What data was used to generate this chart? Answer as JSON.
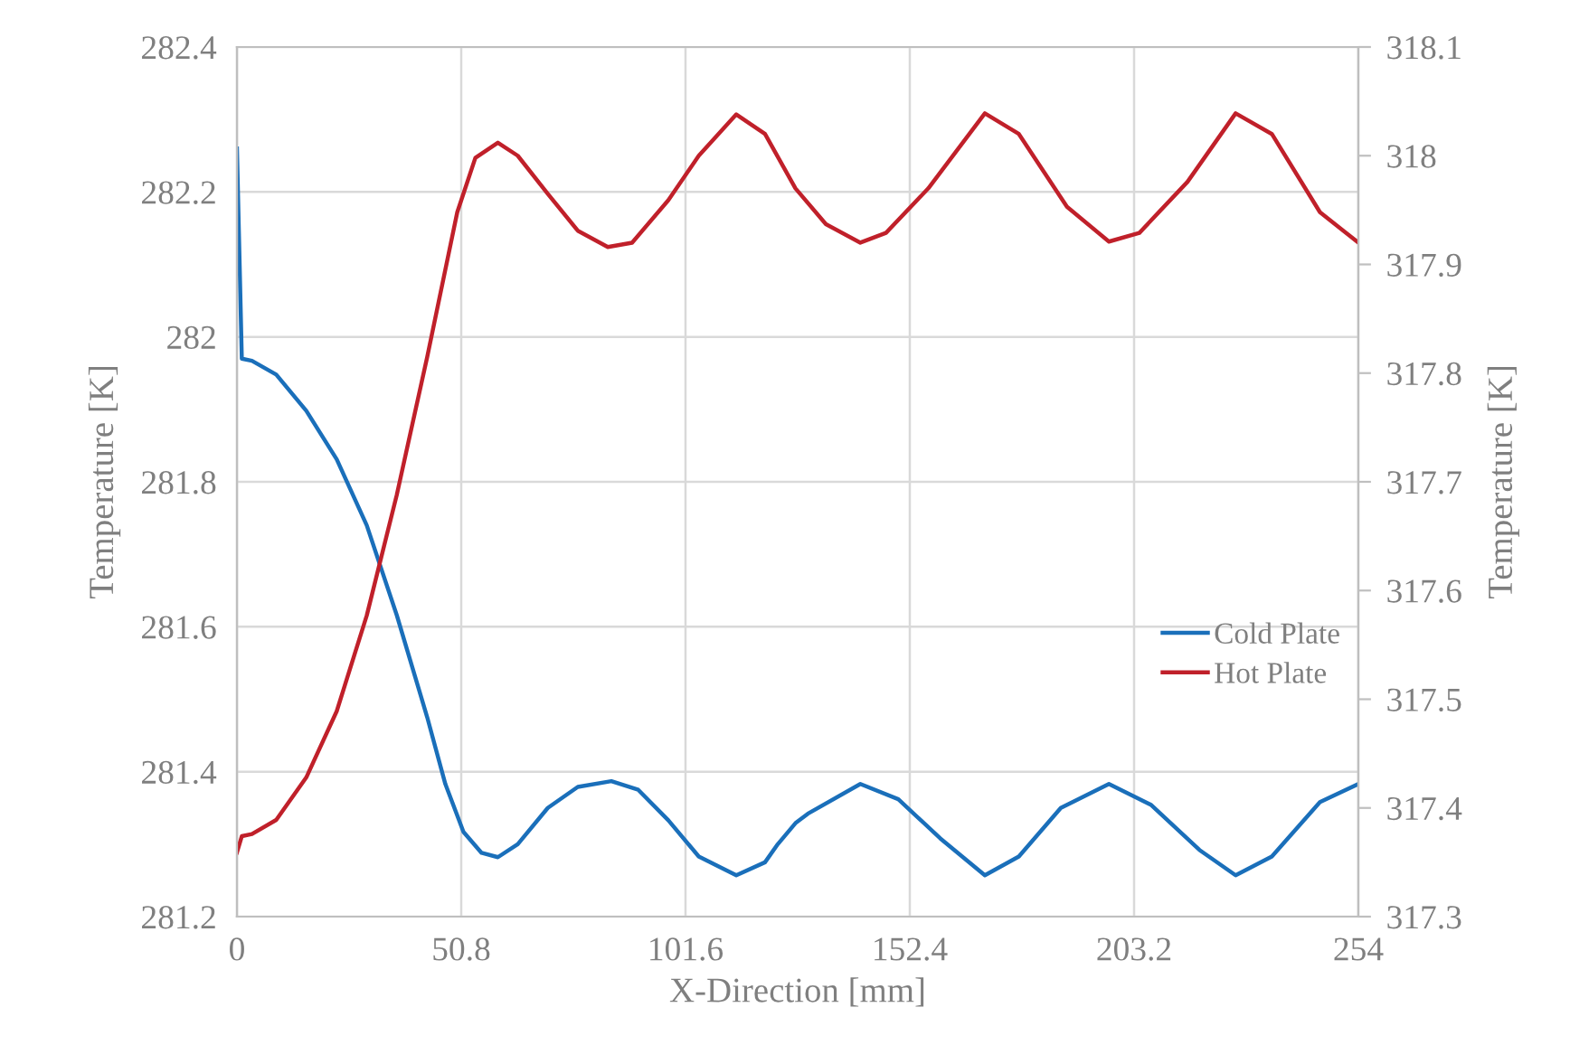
{
  "chart_data": {
    "type": "line",
    "xlabel": "X-Direction [mm]",
    "ylabel": "Temperature [K]",
    "y2label": "Temperature [K]",
    "xlim": [
      0,
      254
    ],
    "xticks": [
      0,
      50.8,
      101.6,
      152.4,
      203.2,
      254
    ],
    "ylim": [
      281.2,
      282.4
    ],
    "yticks": [
      281.2,
      281.4,
      281.6,
      281.8,
      282,
      282.2,
      282.4
    ],
    "y2lim": [
      317.3,
      318.1
    ],
    "y2ticks": [
      317.3,
      317.4,
      317.5,
      317.6,
      317.7,
      317.8,
      317.9,
      318,
      318.1
    ],
    "grid": true,
    "legend": "right",
    "marker": "none",
    "line_style": "solid",
    "series": [
      {
        "name": "Cold Plate",
        "color": "#1a6fba",
        "x": [
          0,
          1.1,
          3.4,
          8.9,
          15.7,
          22.6,
          29.4,
          36.2,
          43.1,
          47.2,
          51.3,
          55.4,
          59.1,
          63.6,
          70.4,
          77.2,
          84.8,
          90.9,
          97.7,
          104.6,
          113.1,
          119.6,
          122.5,
          126.5,
          129.3,
          141.2,
          149.8,
          159.3,
          169.4,
          177.1,
          186.6,
          197.5,
          207.1,
          218.0,
          226.2,
          234.4,
          245.3,
          254
        ],
        "values": [
          282.26,
          281.97,
          281.967,
          281.948,
          281.898,
          281.831,
          281.74,
          281.616,
          281.475,
          281.383,
          281.317,
          281.288,
          281.282,
          281.3,
          281.35,
          281.379,
          281.387,
          281.375,
          281.333,
          281.283,
          281.257,
          281.275,
          281.3,
          281.329,
          281.342,
          281.383,
          281.362,
          281.308,
          281.257,
          281.283,
          281.35,
          281.383,
          281.354,
          281.292,
          281.257,
          281.283,
          281.358,
          281.383
        ]
      },
      {
        "name": "Hot Plate",
        "color": "#c0202a",
        "axis": "y2",
        "x": [
          0,
          1.1,
          3.4,
          8.9,
          15.7,
          22.6,
          29.4,
          36.2,
          43.1,
          49.9,
          54.0,
          59.1,
          63.6,
          70.4,
          77.2,
          84.0,
          89.5,
          97.7,
          104.6,
          113.1,
          119.6,
          126.5,
          133.4,
          141.2,
          147.0,
          156.6,
          169.4,
          177.1,
          188.0,
          197.5,
          204.4,
          215.3,
          226.2,
          234.4,
          245.3,
          254
        ],
        "values": [
          317.359,
          317.374,
          317.376,
          317.389,
          317.428,
          317.489,
          317.577,
          317.688,
          317.815,
          317.948,
          317.998,
          318.012,
          318.0,
          317.965,
          317.931,
          317.916,
          317.92,
          317.959,
          318.0,
          318.038,
          318.02,
          317.97,
          317.937,
          317.92,
          317.929,
          317.97,
          318.039,
          318.02,
          317.953,
          317.921,
          317.929,
          317.976,
          318.039,
          318.02,
          317.948,
          317.92
        ]
      }
    ]
  }
}
